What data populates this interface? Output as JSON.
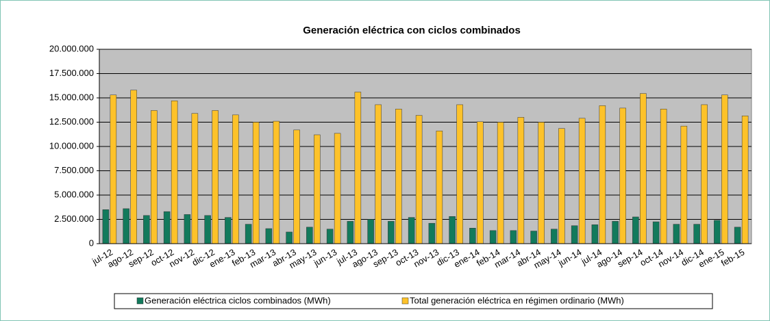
{
  "chart_data": {
    "type": "bar",
    "title": "Generación eléctrica con ciclos combinados",
    "categories": [
      "jul-12",
      "ago-12",
      "sep-12",
      "oct-12",
      "nov-12",
      "dic-12",
      "ene-13",
      "feb-13",
      "mar-13",
      "abr-13",
      "may-13",
      "jun-13",
      "jul-13",
      "ago-13",
      "sep-13",
      "oct-13",
      "nov-13",
      "dic-13",
      "ene-14",
      "feb-14",
      "mar-14",
      "abr-14",
      "may-14",
      "jun-14",
      "jul-14",
      "ago-14",
      "sep-14",
      "oct-14",
      "nov-14",
      "dic-14",
      "ene-15",
      "feb-15"
    ],
    "series": [
      {
        "name": "Generación eléctrica ciclos combinados (MWh)",
        "color": "#127a5c",
        "values": [
          3500000,
          3600000,
          2900000,
          3300000,
          3000000,
          2900000,
          2700000,
          2000000,
          1550000,
          1200000,
          1700000,
          1500000,
          2300000,
          2500000,
          2300000,
          2700000,
          2100000,
          2800000,
          1600000,
          1350000,
          1350000,
          1300000,
          1500000,
          1850000,
          1950000,
          2300000,
          2750000,
          2250000,
          2000000,
          2000000,
          2400000,
          1700000
        ]
      },
      {
        "name": "Total generación eléctrica en régimen ordinario (MWh)",
        "color": "#fdc22a",
        "values": [
          15300000,
          15800000,
          13700000,
          14700000,
          13400000,
          13700000,
          13250000,
          12500000,
          12600000,
          11700000,
          11200000,
          11350000,
          15600000,
          14300000,
          13850000,
          13200000,
          11600000,
          14300000,
          12550000,
          12500000,
          13000000,
          12500000,
          11850000,
          12900000,
          14200000,
          13950000,
          15450000,
          13850000,
          12100000,
          14300000,
          15300000,
          13150000
        ]
      }
    ],
    "ylim": [
      0,
      20000000
    ],
    "yticks": [
      0,
      {
        "value": 2500000,
        "label": "2.500.000"
      },
      {
        "value": 5000000,
        "label": "5.000.000"
      },
      {
        "value": 7500000,
        "label": "7.500.000"
      },
      {
        "value": 10000000,
        "label": "10.000.000"
      },
      {
        "value": 12500000,
        "label": "12.500.000"
      },
      {
        "value": 15000000,
        "label": "15.000.000"
      },
      {
        "value": 17500000,
        "label": "17.500.000"
      },
      {
        "value": 20000000,
        "label": "20.000.000"
      }
    ],
    "grid": true,
    "legend": "bottom"
  }
}
